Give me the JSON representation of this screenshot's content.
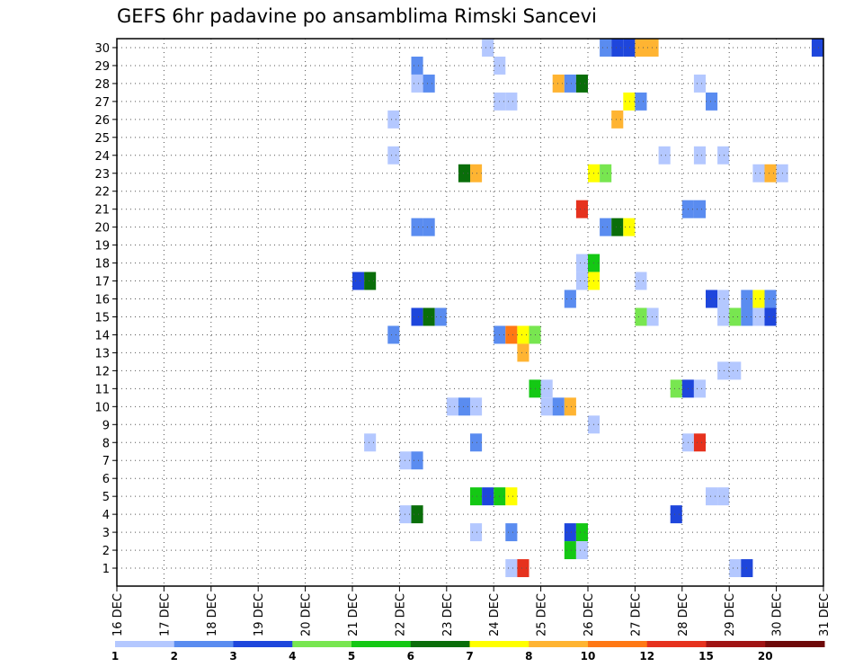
{
  "chart_data": {
    "type": "heatmap",
    "title": "GEFS 6hr padavine po ansamblima Rimski Sancevi",
    "x_ticks": [
      "16 DEC",
      "17 DEC",
      "18 DEC",
      "19 DEC",
      "20 DEC",
      "21 DEC",
      "22 DEC",
      "23 DEC",
      "24 DEC",
      "25 DEC",
      "26 DEC",
      "27 DEC",
      "28 DEC",
      "29 DEC",
      "30 DEC",
      "31 DEC"
    ],
    "y_range": [
      0,
      30
    ],
    "y_ticks": [
      1,
      2,
      3,
      4,
      5,
      6,
      7,
      8,
      9,
      10,
      11,
      12,
      13,
      14,
      15,
      16,
      17,
      18,
      19,
      20,
      21,
      22,
      23,
      24,
      25,
      26,
      27,
      28,
      29,
      30
    ],
    "grid": true,
    "colorbar": {
      "boundaries": [
        "1",
        "2",
        "3",
        "4",
        "5",
        "6",
        "7",
        "8",
        "10",
        "12",
        "15",
        "20"
      ],
      "colors": [
        "#b4c8ff",
        "#5a8cf0",
        "#1e46dc",
        "#78e650",
        "#14c814",
        "#0a6e0a",
        "#ffff00",
        "#ffb432",
        "#ff7814",
        "#e6321e",
        "#a01414",
        "#6e0a0a"
      ]
    },
    "cells": [
      {
        "x": "23 DEC 18Z",
        "y": 30,
        "v": 1
      },
      {
        "x": "26 DEC 06Z",
        "y": 30,
        "v": 2
      },
      {
        "x": "26 DEC 12Z",
        "y": 30,
        "v": 3
      },
      {
        "x": "26 DEC 18Z",
        "y": 30,
        "v": 3
      },
      {
        "x": "27 DEC 00Z",
        "y": 30,
        "v": 8
      },
      {
        "x": "27 DEC 06Z",
        "y": 30,
        "v": 8
      },
      {
        "x": "30 DEC 18Z",
        "y": 30,
        "v": 3
      },
      {
        "x": "22 DEC 06Z",
        "y": 29,
        "v": 2
      },
      {
        "x": "24 DEC 00Z",
        "y": 29,
        "v": 1
      },
      {
        "x": "22 DEC 06Z",
        "y": 28,
        "v": 1
      },
      {
        "x": "22 DEC 12Z",
        "y": 28,
        "v": 2
      },
      {
        "x": "25 DEC 06Z",
        "y": 28,
        "v": 8
      },
      {
        "x": "25 DEC 12Z",
        "y": 28,
        "v": 2
      },
      {
        "x": "25 DEC 18Z",
        "y": 28,
        "v": 6
      },
      {
        "x": "28 DEC 06Z",
        "y": 28,
        "v": 1
      },
      {
        "x": "26 DEC 18Z",
        "y": 27,
        "v": 7
      },
      {
        "x": "27 DEC 00Z",
        "y": 27,
        "v": 2
      },
      {
        "x": "28 DEC 12Z",
        "y": 27,
        "v": 2
      },
      {
        "x": "24 DEC 00Z",
        "y": 27,
        "v": 1
      },
      {
        "x": "24 DEC 06Z",
        "y": 27,
        "v": 1
      },
      {
        "x": "21 DEC 18Z",
        "y": 26,
        "v": 1
      },
      {
        "x": "26 DEC 12Z",
        "y": 26,
        "v": 8
      },
      {
        "x": "21 DEC 18Z",
        "y": 24,
        "v": 1
      },
      {
        "x": "27 DEC 12Z",
        "y": 24,
        "v": 1
      },
      {
        "x": "28 DEC 06Z",
        "y": 24,
        "v": 1
      },
      {
        "x": "28 DEC 18Z",
        "y": 24,
        "v": 1
      },
      {
        "x": "23 DEC 06Z",
        "y": 23,
        "v": 6
      },
      {
        "x": "23 DEC 12Z",
        "y": 23,
        "v": 8
      },
      {
        "x": "26 DEC 00Z",
        "y": 23,
        "v": 7
      },
      {
        "x": "26 DEC 06Z",
        "y": 23,
        "v": 4
      },
      {
        "x": "29 DEC 12Z",
        "y": 23,
        "v": 1
      },
      {
        "x": "29 DEC 18Z",
        "y": 23,
        "v": 8
      },
      {
        "x": "30 DEC 00Z",
        "y": 23,
        "v": 1
      },
      {
        "x": "25 DEC 18Z",
        "y": 21,
        "v": 12
      },
      {
        "x": "28 DEC 00Z",
        "y": 21,
        "v": 2
      },
      {
        "x": "28 DEC 06Z",
        "y": 21,
        "v": 2
      },
      {
        "x": "22 DEC 06Z",
        "y": 20,
        "v": 2
      },
      {
        "x": "22 DEC 12Z",
        "y": 20,
        "v": 2
      },
      {
        "x": "26 DEC 06Z",
        "y": 20,
        "v": 2
      },
      {
        "x": "26 DEC 12Z",
        "y": 20,
        "v": 6
      },
      {
        "x": "26 DEC 18Z",
        "y": 20,
        "v": 7
      },
      {
        "x": "25 DEC 18Z",
        "y": 18,
        "v": 1
      },
      {
        "x": "26 DEC 00Z",
        "y": 18,
        "v": 5
      },
      {
        "x": "21 DEC 00Z",
        "y": 17,
        "v": 3
      },
      {
        "x": "21 DEC 06Z",
        "y": 17,
        "v": 6
      },
      {
        "x": "25 DEC 18Z",
        "y": 17,
        "v": 1
      },
      {
        "x": "26 DEC 00Z",
        "y": 17,
        "v": 7
      },
      {
        "x": "27 DEC 00Z",
        "y": 17,
        "v": 1
      },
      {
        "x": "25 DEC 12Z",
        "y": 16,
        "v": 2
      },
      {
        "x": "28 DEC 12Z",
        "y": 16,
        "v": 3
      },
      {
        "x": "28 DEC 18Z",
        "y": 16,
        "v": 1
      },
      {
        "x": "29 DEC 06Z",
        "y": 16,
        "v": 2
      },
      {
        "x": "29 DEC 12Z",
        "y": 16,
        "v": 7
      },
      {
        "x": "29 DEC 18Z",
        "y": 16,
        "v": 2
      },
      {
        "x": "22 DEC 06Z",
        "y": 15,
        "v": 3
      },
      {
        "x": "22 DEC 12Z",
        "y": 15,
        "v": 6
      },
      {
        "x": "22 DEC 18Z",
        "y": 15,
        "v": 2
      },
      {
        "x": "27 DEC 00Z",
        "y": 15,
        "v": 4
      },
      {
        "x": "27 DEC 06Z",
        "y": 15,
        "v": 1
      },
      {
        "x": "28 DEC 18Z",
        "y": 15,
        "v": 1
      },
      {
        "x": "29 DEC 00Z",
        "y": 15,
        "v": 4
      },
      {
        "x": "29 DEC 06Z",
        "y": 15,
        "v": 2
      },
      {
        "x": "29 DEC 12Z",
        "y": 15,
        "v": 1
      },
      {
        "x": "29 DEC 18Z",
        "y": 15,
        "v": 3
      },
      {
        "x": "21 DEC 18Z",
        "y": 14,
        "v": 2
      },
      {
        "x": "24 DEC 00Z",
        "y": 14,
        "v": 2
      },
      {
        "x": "24 DEC 06Z",
        "y": 14,
        "v": 10
      },
      {
        "x": "24 DEC 12Z",
        "y": 14,
        "v": 7
      },
      {
        "x": "24 DEC 18Z",
        "y": 14,
        "v": 4
      },
      {
        "x": "24 DEC 12Z",
        "y": 13,
        "v": 8
      },
      {
        "x": "28 DEC 18Z",
        "y": 12,
        "v": 1
      },
      {
        "x": "29 DEC 00Z",
        "y": 12,
        "v": 1
      },
      {
        "x": "24 DEC 18Z",
        "y": 11,
        "v": 5
      },
      {
        "x": "25 DEC 00Z",
        "y": 11,
        "v": 1
      },
      {
        "x": "27 DEC 18Z",
        "y": 11,
        "v": 4
      },
      {
        "x": "28 DEC 00Z",
        "y": 11,
        "v": 3
      },
      {
        "x": "28 DEC 06Z",
        "y": 11,
        "v": 1
      },
      {
        "x": "23 DEC 00Z",
        "y": 10,
        "v": 1
      },
      {
        "x": "23 DEC 06Z",
        "y": 10,
        "v": 2
      },
      {
        "x": "23 DEC 12Z",
        "y": 10,
        "v": 1
      },
      {
        "x": "25 DEC 00Z",
        "y": 10,
        "v": 1
      },
      {
        "x": "25 DEC 06Z",
        "y": 10,
        "v": 2
      },
      {
        "x": "25 DEC 12Z",
        "y": 10,
        "v": 8
      },
      {
        "x": "26 DEC 00Z",
        "y": 9,
        "v": 1
      },
      {
        "x": "21 DEC 06Z",
        "y": 8,
        "v": 1
      },
      {
        "x": "23 DEC 12Z",
        "y": 8,
        "v": 2
      },
      {
        "x": "28 DEC 00Z",
        "y": 8,
        "v": 1
      },
      {
        "x": "28 DEC 06Z",
        "y": 8,
        "v": 12
      },
      {
        "x": "22 DEC 00Z",
        "y": 7,
        "v": 1
      },
      {
        "x": "22 DEC 06Z",
        "y": 7,
        "v": 2
      },
      {
        "x": "23 DEC 12Z",
        "y": 5,
        "v": 5
      },
      {
        "x": "23 DEC 18Z",
        "y": 5,
        "v": 3
      },
      {
        "x": "24 DEC 00Z",
        "y": 5,
        "v": 5
      },
      {
        "x": "24 DEC 06Z",
        "y": 5,
        "v": 7
      },
      {
        "x": "28 DEC 12Z",
        "y": 5,
        "v": 1
      },
      {
        "x": "28 DEC 18Z",
        "y": 5,
        "v": 1
      },
      {
        "x": "22 DEC 00Z",
        "y": 4,
        "v": 1
      },
      {
        "x": "22 DEC 06Z",
        "y": 4,
        "v": 6
      },
      {
        "x": "27 DEC 18Z",
        "y": 4,
        "v": 3
      },
      {
        "x": "23 DEC 12Z",
        "y": 3,
        "v": 1
      },
      {
        "x": "24 DEC 06Z",
        "y": 3,
        "v": 2
      },
      {
        "x": "25 DEC 12Z",
        "y": 3,
        "v": 3
      },
      {
        "x": "25 DEC 18Z",
        "y": 3,
        "v": 5
      },
      {
        "x": "25 DEC 12Z",
        "y": 2,
        "v": 5
      },
      {
        "x": "25 DEC 18Z",
        "y": 2,
        "v": 1
      },
      {
        "x": "24 DEC 06Z",
        "y": 1,
        "v": 1
      },
      {
        "x": "24 DEC 12Z",
        "y": 1,
        "v": 12
      },
      {
        "x": "29 DEC 00Z",
        "y": 1,
        "v": 1
      },
      {
        "x": "29 DEC 06Z",
        "y": 1,
        "v": 3
      }
    ]
  }
}
